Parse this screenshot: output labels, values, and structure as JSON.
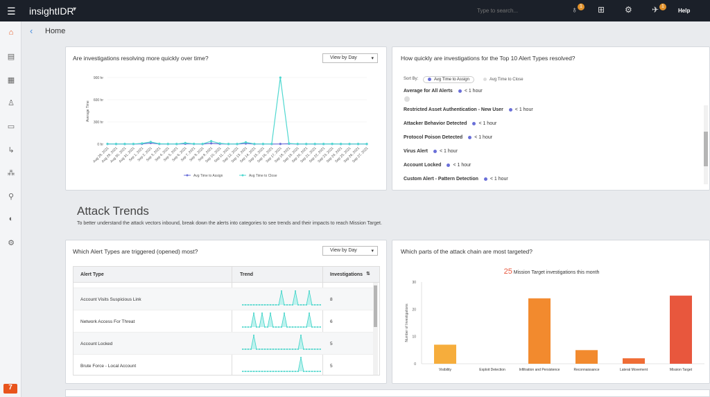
{
  "topbar": {
    "brand": "insightIDR",
    "search_placeholder": "Type to search...",
    "help": "Help",
    "badge1": "1",
    "badge2": "1"
  },
  "breadcrumb": {
    "title": "Home"
  },
  "panel1": {
    "title": "Are investigations resolving more quickly over time?",
    "dropdown": "View by Day",
    "chart_data": {
      "type": "line",
      "ylabel": "Average Time",
      "yticks": [
        "0 hr",
        "300 hr",
        "600 hr",
        "900 hr"
      ],
      "ylim": [
        0,
        900
      ],
      "x": [
        "Aug 28, 2021",
        "Aug 29, 2021",
        "Aug 30, 2021",
        "Aug 31, 2021",
        "Sep 1, 2021",
        "Sep 2, 2021",
        "Sep 3, 2021",
        "Sep 4, 2021",
        "Sep 5, 2021",
        "Sep 6, 2021",
        "Sep 7, 2021",
        "Sep 8, 2021",
        "Sep 9, 2021",
        "Sep 10, 2021",
        "Sep 11, 2021",
        "Sep 12, 2021",
        "Sep 13, 2021",
        "Sep 14, 2021",
        "Sep 15, 2021",
        "Sep 16, 2021",
        "Sep 17, 2021",
        "Sep 18, 2021",
        "Sep 19, 2021",
        "Sep 20, 2021",
        "Sep 21, 2021",
        "Sep 22, 2021",
        "Sep 23, 2021",
        "Sep 24, 2021",
        "Sep 25, 2021",
        "Sep 26, 2021",
        "Sep 27, 2021"
      ],
      "series": [
        {
          "name": "Avg Time to Assign",
          "color": "#6a6fd8",
          "values": [
            2,
            1,
            1,
            1,
            3,
            15,
            2,
            1,
            1,
            5,
            2,
            1,
            10,
            3,
            1,
            1,
            8,
            1,
            1,
            1,
            2,
            5,
            1,
            1,
            1,
            1,
            2,
            1,
            1,
            1,
            1
          ]
        },
        {
          "name": "Avg Time to Close",
          "color": "#4fd8d0",
          "values": [
            3,
            2,
            2,
            2,
            10,
            30,
            5,
            2,
            2,
            15,
            4,
            3,
            40,
            10,
            2,
            2,
            25,
            3,
            2,
            3,
            900,
            8,
            3,
            2,
            3,
            2,
            4,
            2,
            2,
            2,
            2
          ]
        }
      ],
      "legend_position": "bottom"
    }
  },
  "panel2": {
    "title": "How quickly are investigations for the Top 10 Alert Types resolved?",
    "sort_by": "Sort By:",
    "sort_assign": "Avg Time to Assign",
    "sort_close": "Avg Time to Close",
    "avg_label": "Average for All Alerts",
    "avg_value": "< 1 hour",
    "alerts": [
      {
        "name": "Restricted Asset Authentication - New User",
        "value": "< 1 hour"
      },
      {
        "name": "Attacker Behavior Detected",
        "value": "< 1 hour"
      },
      {
        "name": "Protocol Poison Detected",
        "value": "< 1 hour"
      },
      {
        "name": "Virus Alert",
        "value": "< 1 hour"
      },
      {
        "name": "Account Locked",
        "value": "< 1 hour"
      },
      {
        "name": "Custom Alert - Pattern Detection",
        "value": "< 1 hour"
      }
    ]
  },
  "attack_trends": {
    "title": "Attack Trends",
    "desc": "To better understand the attack vectors inbound, break down the alerts into categories to see trends and their impacts to reach Mission Target."
  },
  "panel3": {
    "title": "Which Alert Types are triggered (opened) most?",
    "dropdown": "View by Day",
    "headers": {
      "type": "Alert Type",
      "trend": "Trend",
      "inv": "Investigations"
    },
    "rows": [
      {
        "type": "Account Visits Suspicious Link",
        "inv": "8"
      },
      {
        "type": "Network Access For Threat",
        "inv": "6"
      },
      {
        "type": "Account Locked",
        "inv": "5"
      },
      {
        "type": "Brute Force - Local Account",
        "inv": "5"
      }
    ]
  },
  "panel4": {
    "title": "Which parts of the attack chain are most targeted?",
    "headline_num": "25",
    "headline_text": "Mission Target investigations this month",
    "chart_data": {
      "type": "bar",
      "ylabel": "Number of Investigations",
      "ylim": [
        0,
        30
      ],
      "yticks": [
        "0",
        "10",
        "20",
        "30"
      ],
      "categories": [
        "Visibility",
        "Exploit Detection",
        "Infiltration and Persistence",
        "Reconnaissance",
        "Lateral Movement",
        "Mission Target"
      ],
      "values": [
        7,
        0,
        24,
        5,
        2,
        25
      ],
      "colors": [
        "#f6ad3c",
        "#f6ad3c",
        "#f28a2e",
        "#f28a2e",
        "#ef6d35",
        "#e8573d"
      ]
    }
  }
}
